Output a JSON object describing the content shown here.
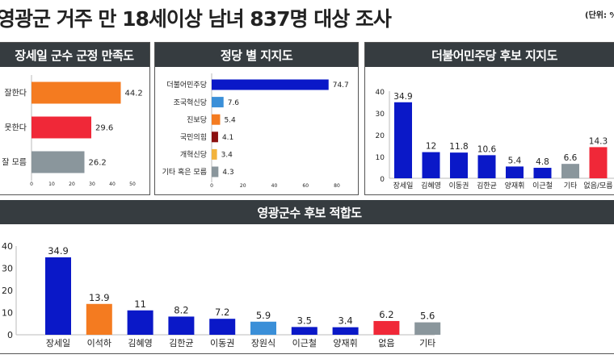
{
  "header": {
    "title": "영광군 거주 만 18세이상 남녀 837명 대상 조사",
    "unit": "(단위: %"
  },
  "colors": {
    "blue": "#0a18c8",
    "orange": "#f47b20",
    "red": "#f02838",
    "gray": "#8a969c",
    "light_blue": "#3a8fd8",
    "dark_red": "#8b1010",
    "yellow": "#f2b33d",
    "header_bg": "#363c40"
  },
  "chart_data": [
    {
      "type": "bar",
      "orientation": "horizontal",
      "title": "장세일 군수 군정 만족도",
      "categories": [
        "잘한다",
        "못한다",
        "잘 모름"
      ],
      "values": [
        44.2,
        29.6,
        26.2
      ],
      "colors": [
        "#f47b20",
        "#f02838",
        "#8a969c"
      ],
      "xlim": [
        0,
        50
      ],
      "xticks": [
        0,
        10,
        20,
        30,
        40,
        50
      ]
    },
    {
      "type": "bar",
      "orientation": "horizontal",
      "title": "정당 별 지지도",
      "categories": [
        "더불어민주당",
        "조국혁신당",
        "진보당",
        "국민의힘",
        "개혁신당",
        "기타 혹은 모름"
      ],
      "values": [
        74.7,
        7.6,
        5.4,
        4.1,
        3.4,
        4.3
      ],
      "colors": [
        "#0a18c8",
        "#3a8fd8",
        "#f47b20",
        "#8b1010",
        "#f2b33d",
        "#8a969c"
      ],
      "xlim": [
        0,
        80
      ],
      "xticks": [
        0,
        20,
        40,
        60,
        80
      ]
    },
    {
      "type": "bar",
      "orientation": "vertical",
      "title": "더불어민주당 후보 지지도",
      "categories": [
        "장세일",
        "김혜영",
        "이동권",
        "김한균",
        "양재휘",
        "이근철",
        "기타",
        "없음/모름"
      ],
      "values": [
        34.9,
        12,
        11.8,
        10.6,
        5.4,
        4.8,
        6.6,
        14.3
      ],
      "colors": [
        "#0a18c8",
        "#0a18c8",
        "#0a18c8",
        "#0a18c8",
        "#0a18c8",
        "#0a18c8",
        "#8a969c",
        "#f02838"
      ],
      "ylim": [
        0,
        40
      ],
      "yticks": [
        0,
        10,
        20,
        30,
        40
      ]
    },
    {
      "type": "bar",
      "orientation": "vertical",
      "title": "영광군수 후보 적합도",
      "categories": [
        "장세일",
        "이석하",
        "김혜영",
        "김한균",
        "이동권",
        "장원식",
        "이근철",
        "양재휘",
        "없음",
        "기타"
      ],
      "values": [
        34.9,
        13.9,
        11,
        8.2,
        7.2,
        5.9,
        3.5,
        3.4,
        6.2,
        5.6
      ],
      "colors": [
        "#0a18c8",
        "#f47b20",
        "#0a18c8",
        "#0a18c8",
        "#0a18c8",
        "#3a8fd8",
        "#0a18c8",
        "#0a18c8",
        "#f02838",
        "#8a969c"
      ],
      "ylim": [
        0,
        40
      ],
      "yticks": [
        0,
        10,
        20,
        30,
        40
      ]
    }
  ]
}
